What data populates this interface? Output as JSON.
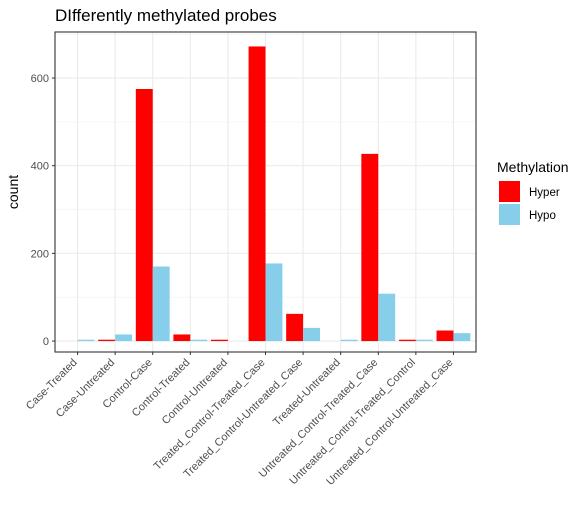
{
  "chart_data": {
    "type": "bar",
    "title": "DIfferently methylated probes",
    "xlabel": "",
    "ylabel": "count",
    "ylim": [
      -25,
      705
    ],
    "yticks": [
      0,
      200,
      400,
      600
    ],
    "grid": true,
    "legend_position": "right",
    "legend_title": "Methylation",
    "categories": [
      "Case-Treated",
      "Case-Untreated",
      "Control-Case",
      "Control-Treated",
      "Control-Untreated",
      "Treated_Control-Treated_Case",
      "Treated_Control-Untreated_Case",
      "Treated-Untreated",
      "Untreated_Control-Treated_Case",
      "Untreated_Control-Treated_Control",
      "Untreated_Control-Untreated_Case"
    ],
    "series": [
      {
        "name": "Hyper",
        "color": "#FF0000",
        "values": [
          0,
          3,
          575,
          15,
          3,
          672,
          62,
          0,
          427,
          3,
          24
        ]
      },
      {
        "name": "Hypo",
        "color": "#87CEEB",
        "values": [
          3,
          15,
          170,
          3,
          0,
          177,
          30,
          3,
          108,
          3,
          18
        ]
      }
    ]
  }
}
